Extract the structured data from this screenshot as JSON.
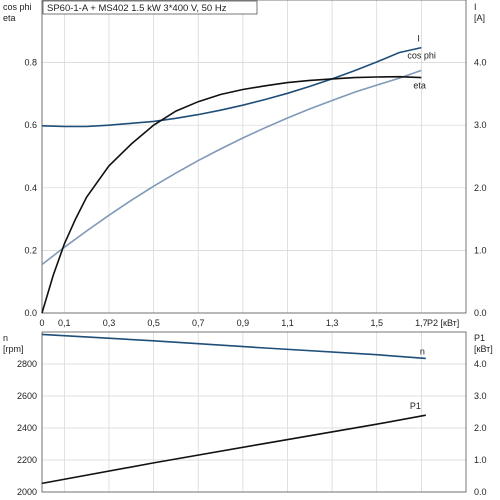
{
  "chart_data": [
    {
      "type": "line",
      "title": "SP60-1-A + MS402   1.5 kW   3*400 V, 50 Hz",
      "xlabel": "P2 [кВт]",
      "ylabel_left": "cos phi\neta",
      "ylabel_right": "I\n[A]",
      "xlim": [
        0,
        1.9
      ],
      "ylim_left": [
        0,
        1.0
      ],
      "ylim_right": [
        0,
        5.0
      ],
      "x_ticks": [
        "0",
        "0,1",
        "0,3",
        "0,5",
        "0,7",
        "0,9",
        "1,1",
        "1,3",
        "1,5",
        "1,7"
      ],
      "x_tick_values": [
        0,
        0.1,
        0.3,
        0.5,
        0.7,
        0.9,
        1.1,
        1.3,
        1.5,
        1.7
      ],
      "y_ticks_left": [
        "0.0",
        "0.2",
        "0.4",
        "0.6",
        "0.8"
      ],
      "y_ticks_right": [
        "0.0",
        "1.0",
        "2.0",
        "3.0",
        "4.0"
      ],
      "grid": true,
      "series": [
        {
          "name": "I",
          "axis": "right",
          "color": "#1f4e79",
          "x": [
            0,
            0.1,
            0.2,
            0.3,
            0.4,
            0.5,
            0.6,
            0.7,
            0.8,
            0.9,
            1.0,
            1.1,
            1.2,
            1.3,
            1.4,
            1.5,
            1.6,
            1.7
          ],
          "y": [
            2.99,
            2.98,
            2.98,
            3.0,
            3.03,
            3.06,
            3.11,
            3.17,
            3.24,
            3.32,
            3.41,
            3.51,
            3.62,
            3.74,
            3.87,
            4.01,
            4.16,
            4.24
          ]
        },
        {
          "name": "cos phi",
          "axis": "left",
          "color": "#7f9ab8",
          "x": [
            0,
            0.1,
            0.2,
            0.3,
            0.4,
            0.5,
            0.6,
            0.7,
            0.8,
            0.9,
            1.0,
            1.1,
            1.2,
            1.3,
            1.4,
            1.5,
            1.6,
            1.7
          ],
          "y": [
            0.155,
            0.21,
            0.262,
            0.312,
            0.36,
            0.405,
            0.447,
            0.487,
            0.524,
            0.559,
            0.592,
            0.623,
            0.652,
            0.679,
            0.705,
            0.728,
            0.75,
            0.775
          ]
        },
        {
          "name": "eta",
          "axis": "left",
          "color": "#111111",
          "x": [
            0,
            0.05,
            0.1,
            0.15,
            0.2,
            0.3,
            0.4,
            0.5,
            0.6,
            0.7,
            0.8,
            0.9,
            1.0,
            1.1,
            1.2,
            1.3,
            1.4,
            1.5,
            1.6,
            1.7
          ],
          "y": [
            0.0,
            0.12,
            0.22,
            0.3,
            0.37,
            0.47,
            0.54,
            0.6,
            0.645,
            0.675,
            0.698,
            0.714,
            0.726,
            0.736,
            0.743,
            0.748,
            0.752,
            0.754,
            0.755,
            0.752
          ]
        }
      ]
    },
    {
      "type": "line",
      "xlim": [
        0,
        1.9
      ],
      "ylabel_left": "n\n[rpm]",
      "ylabel_right": "P1\n[кВт]",
      "ylim_left": [
        2000,
        3000
      ],
      "ylim_right": [
        0,
        5.0
      ],
      "y_ticks_left": [
        "2000",
        "2200",
        "2400",
        "2600",
        "2800"
      ],
      "y_ticks_right": [
        "0.0",
        "1.0",
        "2.0",
        "3.0",
        "4.0"
      ],
      "grid": true,
      "series": [
        {
          "name": "n",
          "axis": "left",
          "color": "#1f4e79",
          "x": [
            0,
            0.5,
            1.0,
            1.5,
            1.72
          ],
          "y": [
            2985,
            2945,
            2900,
            2858,
            2835
          ]
        },
        {
          "name": "P1",
          "axis": "right",
          "color": "#111111",
          "x": [
            0,
            0.5,
            1.0,
            1.5,
            1.72
          ],
          "y": [
            0.27,
            0.91,
            1.52,
            2.12,
            2.4
          ]
        }
      ]
    }
  ]
}
